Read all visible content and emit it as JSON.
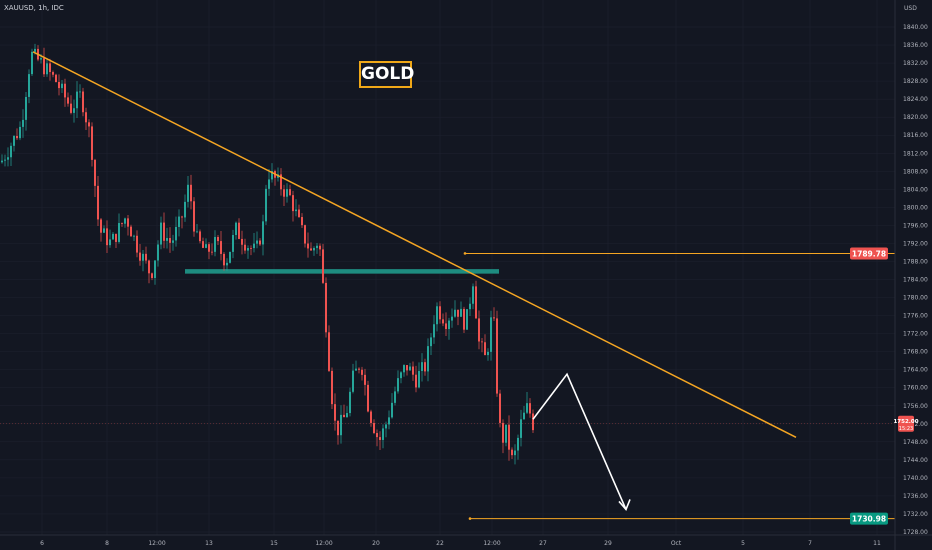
{
  "symbol_label": "XAUUSD, 1h, IDC",
  "badge_text": "GOLD",
  "colors": {
    "background": "#131722",
    "grid": "#1f2230",
    "axis_text": "#b2b5be",
    "up": "#26a69a",
    "down": "#ef5350",
    "trendline": "#f5a623",
    "arrow": "#ffffff",
    "zone": "#1e8c80"
  },
  "chart_data": {
    "type": "candlestick",
    "currency_label": "USD",
    "ylim": [
      1727,
      1846
    ],
    "price_ticks": [
      1840,
      1836,
      1832,
      1828,
      1824,
      1820,
      1816,
      1812,
      1808,
      1804,
      1800,
      1796,
      1792,
      1788,
      1784,
      1780,
      1776,
      1772,
      1768,
      1764,
      1760,
      1756,
      1752,
      1748,
      1744,
      1740,
      1736,
      1732,
      1728
    ],
    "time_ticks": [
      "6",
      "8",
      "12:00",
      "13",
      "15",
      "12:00",
      "20",
      "22",
      "12:00",
      "27",
      "29",
      "Oct",
      "5",
      "7",
      "11"
    ],
    "price_labels": [
      {
        "value": 1789.78,
        "text": "1789.78",
        "color": "#ef5350"
      },
      {
        "value": 1752.0,
        "text": "1752.00",
        "sub": "15:23",
        "color": "#ef5350"
      },
      {
        "value": 1730.98,
        "text": "1730.98",
        "color": "#089981"
      }
    ],
    "path": [
      [
        0,
        1810
      ],
      [
        20,
        1818
      ],
      [
        30,
        1834
      ],
      [
        40,
        1832
      ],
      [
        55,
        1828
      ],
      [
        70,
        1822
      ],
      [
        80,
        1825
      ],
      [
        90,
        1815
      ],
      [
        98,
        1795
      ],
      [
        110,
        1792
      ],
      [
        125,
        1798
      ],
      [
        135,
        1792
      ],
      [
        150,
        1785
      ],
      [
        160,
        1795
      ],
      [
        170,
        1792
      ],
      [
        180,
        1797
      ],
      [
        188,
        1805
      ],
      [
        195,
        1793
      ],
      [
        205,
        1790
      ],
      [
        215,
        1792
      ],
      [
        225,
        1788
      ],
      [
        235,
        1795
      ],
      [
        245,
        1792
      ],
      [
        255,
        1790
      ],
      [
        262,
        1796
      ],
      [
        266,
        1808
      ],
      [
        275,
        1806
      ],
      [
        290,
        1802
      ],
      [
        300,
        1795
      ],
      [
        310,
        1790
      ],
      [
        318,
        1793
      ],
      [
        323,
        1780
      ],
      [
        330,
        1760
      ],
      [
        335,
        1750
      ],
      [
        345,
        1754
      ],
      [
        352,
        1762
      ],
      [
        360,
        1766
      ],
      [
        368,
        1755
      ],
      [
        378,
        1748
      ],
      [
        385,
        1752
      ],
      [
        395,
        1760
      ],
      [
        405,
        1765
      ],
      [
        415,
        1762
      ],
      [
        425,
        1765
      ],
      [
        435,
        1778
      ],
      [
        445,
        1775
      ],
      [
        455,
        1778
      ],
      [
        465,
        1774
      ],
      [
        472,
        1784
      ],
      [
        478,
        1770
      ],
      [
        485,
        1766
      ],
      [
        492,
        1778
      ],
      [
        496,
        1760
      ],
      [
        500,
        1748
      ],
      [
        505,
        1750
      ],
      [
        512,
        1743
      ],
      [
        520,
        1752
      ],
      [
        527,
        1756
      ],
      [
        532,
        1752
      ]
    ],
    "trendline": {
      "x0": 33,
      "y0": 1834.5,
      "x1": 796,
      "y1": 1749
    },
    "resistance_zone": {
      "x0": 185,
      "x1": 499,
      "y_top": 1786.3,
      "y_bottom": 1785.3
    },
    "horizontal_levels": [
      {
        "value": 1789.78,
        "x0": 465
      },
      {
        "value": 1730.98,
        "x0": 470
      }
    ],
    "projection": [
      [
        533,
        1753
      ],
      [
        567,
        1763
      ],
      [
        626,
        1733
      ]
    ]
  }
}
